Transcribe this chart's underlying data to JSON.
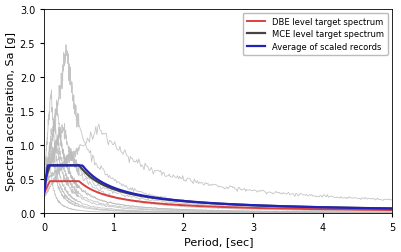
{
  "title": "",
  "xlabel": "Period, [sec]",
  "ylabel": "Spectral acceleration, Sa [g]",
  "xlim": [
    0,
    5
  ],
  "ylim": [
    0,
    3
  ],
  "yticks": [
    0,
    0.5,
    1.0,
    1.5,
    2.0,
    2.5,
    3.0
  ],
  "xticks": [
    0,
    1,
    2,
    3,
    4,
    5
  ],
  "legend_labels": [
    "DBE level target spectrum",
    "MCE level target spectrum",
    "Average of scaled records"
  ],
  "dbe_color": "#d94040",
  "mce_color": "#444444",
  "avg_color": "#2222bb",
  "ground_motion_color": "#bbbbbb",
  "figsize": [
    4.01,
    2.53
  ],
  "dpi": 100
}
